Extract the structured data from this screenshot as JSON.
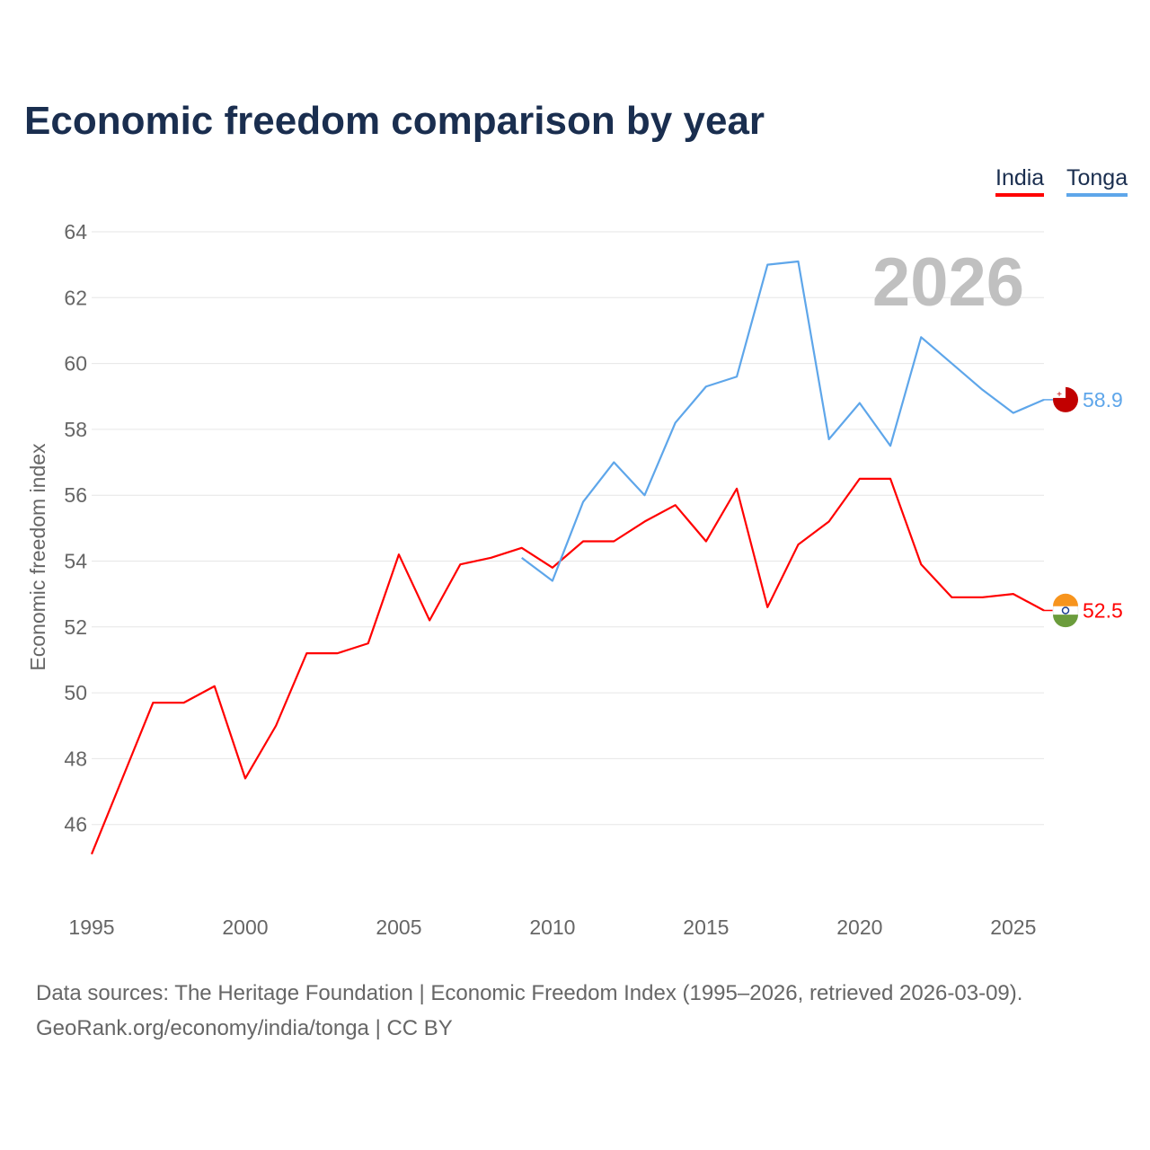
{
  "chart_data": {
    "type": "line",
    "title": "Economic freedom comparison by year",
    "xlabel": "",
    "ylabel": "Economic freedom index",
    "xlim": [
      1995,
      2026
    ],
    "ylim": [
      44,
      64
    ],
    "yticks": [
      46,
      48,
      50,
      52,
      54,
      56,
      58,
      60,
      62,
      64
    ],
    "xticks": [
      1995,
      2000,
      2005,
      2010,
      2015,
      2020,
      2025
    ],
    "grid": true,
    "legend_position": "top-right",
    "year_label": "2026",
    "series": [
      {
        "name": "India",
        "color": "#ff0000",
        "end_label": "52.5",
        "x": [
          1995,
          1996,
          1997,
          1998,
          1999,
          2000,
          2001,
          2002,
          2003,
          2004,
          2005,
          2006,
          2007,
          2008,
          2009,
          2010,
          2011,
          2012,
          2013,
          2014,
          2015,
          2016,
          2017,
          2018,
          2019,
          2020,
          2021,
          2022,
          2023,
          2024,
          2025,
          2026
        ],
        "y": [
          45.1,
          47.4,
          49.7,
          49.7,
          50.2,
          47.4,
          49.0,
          51.2,
          51.2,
          51.5,
          54.2,
          52.2,
          53.9,
          54.1,
          54.4,
          53.8,
          54.6,
          54.6,
          55.2,
          55.7,
          54.6,
          56.2,
          52.6,
          54.5,
          55.2,
          56.5,
          56.5,
          53.9,
          52.9,
          52.9,
          53.0,
          52.5
        ]
      },
      {
        "name": "Tonga",
        "color": "#5ea6ea",
        "end_label": "58.9",
        "x": [
          2009,
          2010,
          2011,
          2012,
          2013,
          2014,
          2015,
          2016,
          2017,
          2018,
          2019,
          2020,
          2021,
          2022,
          2023,
          2024,
          2025,
          2026
        ],
        "y": [
          54.1,
          53.4,
          55.8,
          57.0,
          56.0,
          58.2,
          59.3,
          59.6,
          63.0,
          63.1,
          57.7,
          58.8,
          57.5,
          60.8,
          60.0,
          59.2,
          58.5,
          58.9
        ]
      }
    ]
  },
  "footer": {
    "line1": "Data sources: The Heritage Foundation | Economic Freedom Index (1995–2026, retrieved 2026-03-09).",
    "line2": "GeoRank.org/economy/india/tonga | CC BY"
  }
}
